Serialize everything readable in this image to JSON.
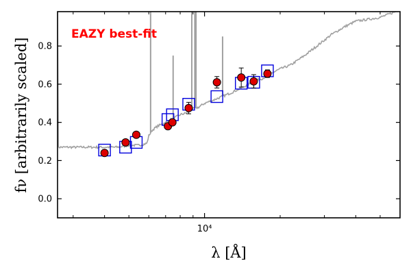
{
  "chart_data": {
    "type": "scatter",
    "xscale": "log",
    "xlim": [
      2600,
      60000
    ],
    "ylim": [
      -0.1,
      0.98
    ],
    "yticks": [
      0.0,
      0.2,
      0.4,
      0.6,
      0.8
    ],
    "ytick_labels": [
      "0.0",
      "0.2",
      "0.4",
      "0.6",
      "0.8"
    ],
    "xticks": [
      10000
    ],
    "xtick_labels": [
      "10⁴"
    ],
    "ylabel": "fν [arbitrarily scaled]",
    "xlabel": "λ [Å]",
    "annotation": {
      "text": "EAZY best-fit",
      "color": "#ff0000",
      "position": "top-left"
    },
    "colors": {
      "template": "#a0a0a0",
      "model": "#0000dd",
      "observed": "#dd0000"
    },
    "template": {
      "x": [
        2600,
        3000,
        3500,
        4000,
        4500,
        5000,
        5500,
        5900,
        6000,
        6200,
        6500,
        7000,
        7500,
        8000,
        8500,
        9000,
        9500,
        10000,
        11000,
        12000,
        13000,
        14000,
        15000,
        16000,
        17000,
        18000,
        20000,
        22000,
        25000,
        28000,
        32000,
        36000,
        40000,
        45000,
        50000,
        55000,
        60000
      ],
      "y": [
        0.27,
        0.27,
        0.27,
        0.27,
        0.27,
        0.28,
        0.28,
        0.29,
        0.33,
        0.36,
        0.38,
        0.4,
        0.42,
        0.44,
        0.45,
        0.47,
        0.48,
        0.5,
        0.52,
        0.54,
        0.56,
        0.58,
        0.6,
        0.62,
        0.63,
        0.65,
        0.68,
        0.7,
        0.75,
        0.8,
        0.86,
        0.9,
        0.93,
        0.94,
        0.95,
        0.97,
        0.99
      ]
    },
    "emission_lines": [
      {
        "x": 6100,
        "peak": 0.98
      },
      {
        "x": 7500,
        "peak": 0.75
      },
      {
        "x": 8900,
        "peak": 0.98
      },
      {
        "x": 9150,
        "peak": 0.98
      },
      {
        "x": 9250,
        "peak": 0.98
      },
      {
        "x": 11800,
        "peak": 0.85
      }
    ],
    "series": [
      {
        "marker": "square",
        "x": [
          4000,
          4850,
          5350,
          7150,
          7450,
          8650,
          11200,
          14000,
          15700,
          17800
        ],
        "y": [
          0.255,
          0.27,
          0.295,
          0.415,
          0.44,
          0.495,
          0.535,
          0.605,
          0.61,
          0.67
        ]
      },
      {
        "marker": "circle",
        "x": [
          4000,
          4850,
          5350,
          7150,
          7450,
          8650,
          11200,
          14000,
          15700,
          17800
        ],
        "y": [
          0.24,
          0.295,
          0.335,
          0.38,
          0.4,
          0.475,
          0.61,
          0.635,
          0.615,
          0.655
        ],
        "yerr": [
          0.015,
          0.01,
          0.01,
          0.01,
          0.01,
          0.03,
          0.03,
          0.05,
          0.035,
          0.02
        ]
      }
    ]
  }
}
